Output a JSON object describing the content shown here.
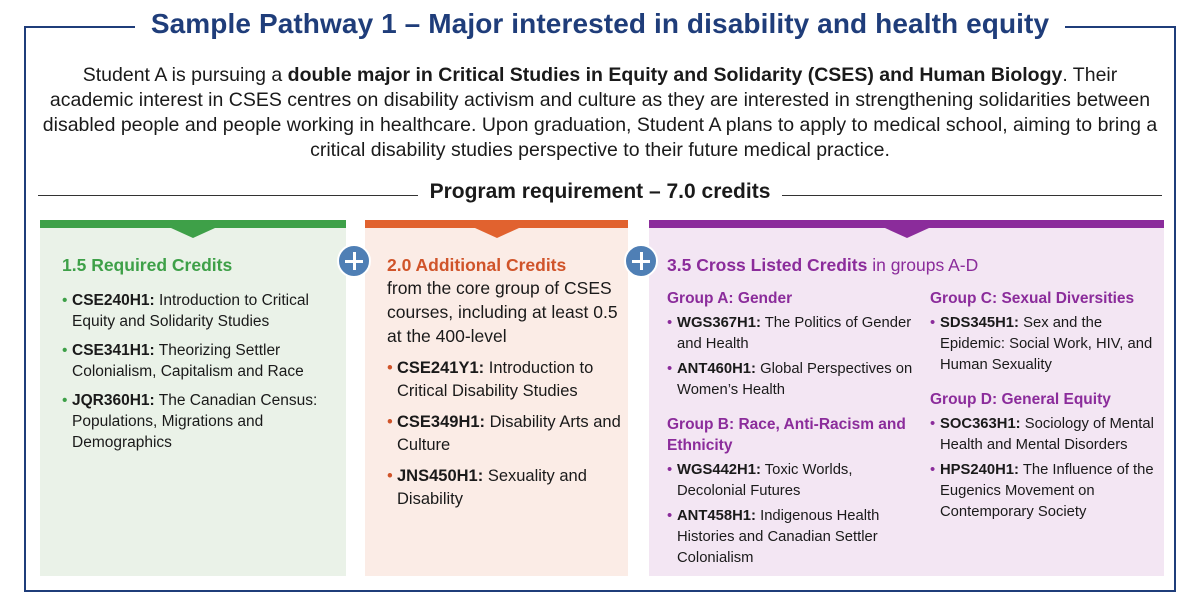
{
  "title": "Sample Pathway 1 – Major interested in disability and health equity",
  "intro": {
    "pre": "Student A is pursuing a ",
    "bold": "double major in Critical Studies in Equity and Solidarity (CSES) and Human Biology",
    "post": ". Their academic interest in CSES centres on disability activism and culture as they are interested in strengthening solidarities between disabled people and people working in healthcare. Upon graduation, Student A plans to apply to medical school, aiming to bring a critical disability studies perspective to their future medical practice."
  },
  "program_requirement": "Program requirement – 7.0 credits",
  "required": {
    "heading": "1.5 Required Credits",
    "items": [
      {
        "code": "CSE240H1:",
        "name": "Introduction to Critical Equity and Solidarity Studies"
      },
      {
        "code": "CSE341H1:",
        "name": "Theorizing Settler Colonialism, Capitalism and Race"
      },
      {
        "code": "JQR360H1:",
        "name": "The Canadian Census: Populations, Migrations and Demographics"
      }
    ]
  },
  "additional": {
    "heading": "2.0 Additional Credits",
    "description": "from the core group of CSES courses, including at least 0.5 at the 400-level",
    "items": [
      {
        "code": "CSE241Y1:",
        "name": "Introduction to Critical Disability Studies"
      },
      {
        "code": "CSE349H1:",
        "name": "Disability Arts and Culture"
      },
      {
        "code": "JNS450H1:",
        "name": "Sexuality and Disability"
      }
    ]
  },
  "cross_listed": {
    "heading": "3.5 Cross Listed Credits",
    "heading_rest": " in groups A-D",
    "groups": [
      {
        "title": "Group A: Gender",
        "items": [
          {
            "code": "WGS367H1:",
            "name": "The Politics of Gender and Health"
          },
          {
            "code": "ANT460H1:",
            "name": "Global Perspectives on Women’s Health"
          }
        ]
      },
      {
        "title": "Group B: Race, Anti-Racism and Ethnicity",
        "items": [
          {
            "code": "WGS442H1:",
            "name": "Toxic Worlds, Decolonial Futures"
          },
          {
            "code": "ANT458H1:",
            "name": "Indigenous Health Histories and Canadian Settler Colonialism"
          }
        ]
      },
      {
        "title": "Group C: Sexual Diversities",
        "items": [
          {
            "code": "SDS345H1:",
            "name": "Sex and the Epidemic: Social Work, HIV, and Human Sexuality"
          }
        ]
      },
      {
        "title": "Group D: General Equity",
        "items": [
          {
            "code": "SOC363H1:",
            "name": "Sociology of Mental Health and Mental Disorders"
          },
          {
            "code": "HPS240H1:",
            "name": "The Influence of the Eugenics Movement on Contemporary Society"
          }
        ]
      }
    ]
  },
  "icons": {
    "plus": "plus-circle-icon"
  },
  "colors": {
    "title": "#1f3d7a",
    "required": "#3ea048",
    "additional": "#e1622f",
    "cross_listed": "#8b2c9b",
    "plus": "#4f7fb5"
  }
}
